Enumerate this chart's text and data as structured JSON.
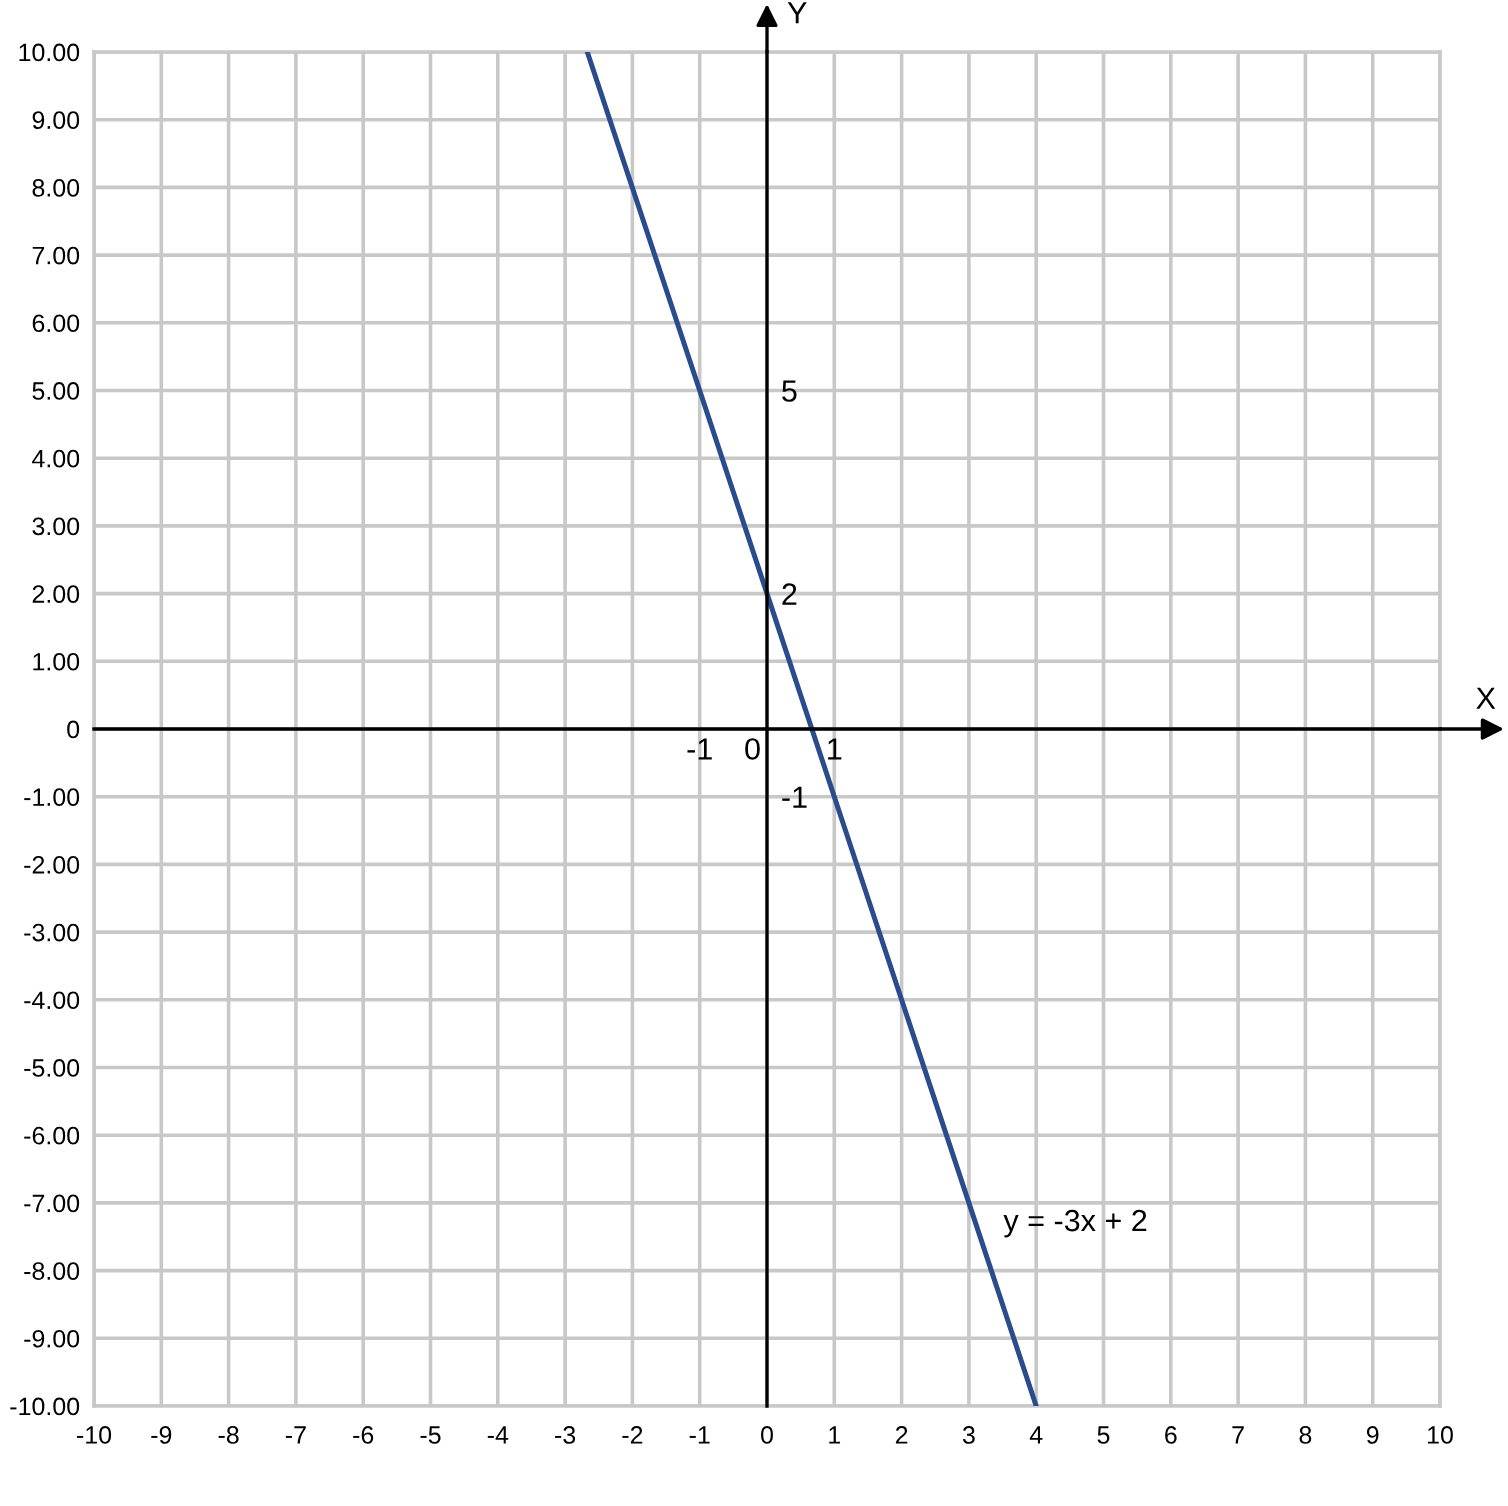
{
  "chart_data": {
    "type": "line",
    "x2label": "X",
    "y2label": "Y",
    "x": [
      -2.67,
      -1,
      0,
      1,
      2,
      3,
      4
    ],
    "series": [
      {
        "color": "#2b4c8c",
        "values": [
          10,
          5,
          2,
          -1,
          -4,
          -7,
          -10
        ]
      }
    ],
    "xlim": [
      -10,
      10
    ],
    "ylim": [
      -10,
      10
    ],
    "xticks": [
      -10,
      -9,
      -8,
      -7,
      -6,
      -5,
      -4,
      -3,
      -2,
      -1,
      0,
      1,
      2,
      3,
      4,
      5,
      6,
      7,
      8,
      9,
      10
    ],
    "yticks": [
      {
        "value": -10,
        "label": "-10.00"
      },
      {
        "value": -9,
        "label": "-9.00"
      },
      {
        "value": -8,
        "label": "-8.00"
      },
      {
        "value": -7,
        "label": "-7.00"
      },
      {
        "value": -6,
        "label": "-6.00"
      },
      {
        "value": -5,
        "label": "-5.00"
      },
      {
        "value": -4,
        "label": "-4.00"
      },
      {
        "value": -3,
        "label": "-3.00"
      },
      {
        "value": -2,
        "label": "-2.00"
      },
      {
        "value": -1,
        "label": "-1.00"
      },
      0,
      {
        "value": 1,
        "label": "1.00"
      },
      {
        "value": 2,
        "label": "2.00"
      },
      {
        "value": 3,
        "label": "3.00"
      },
      {
        "value": 4,
        "label": "4.00"
      },
      {
        "value": 5,
        "label": "5.00"
      },
      {
        "value": 6,
        "label": "6.00"
      },
      {
        "value": 7,
        "label": "7.00"
      },
      {
        "value": 8,
        "label": "8.00"
      },
      {
        "value": 9,
        "label": "9.00"
      },
      {
        "value": 10,
        "label": "10.00"
      }
    ],
    "x2lim": [
      -10,
      10
    ],
    "x2ticks": [
      -1,
      0,
      1
    ],
    "y2lim": [
      -10,
      10
    ],
    "y2ticks": [
      -1,
      2,
      5
    ],
    "grid": true,
    "line_style": "solid",
    "annotations": [
      {
        "text": "y = -3x + 2",
        "x": 3.1,
        "y": -7.3
      }
    ]
  }
}
